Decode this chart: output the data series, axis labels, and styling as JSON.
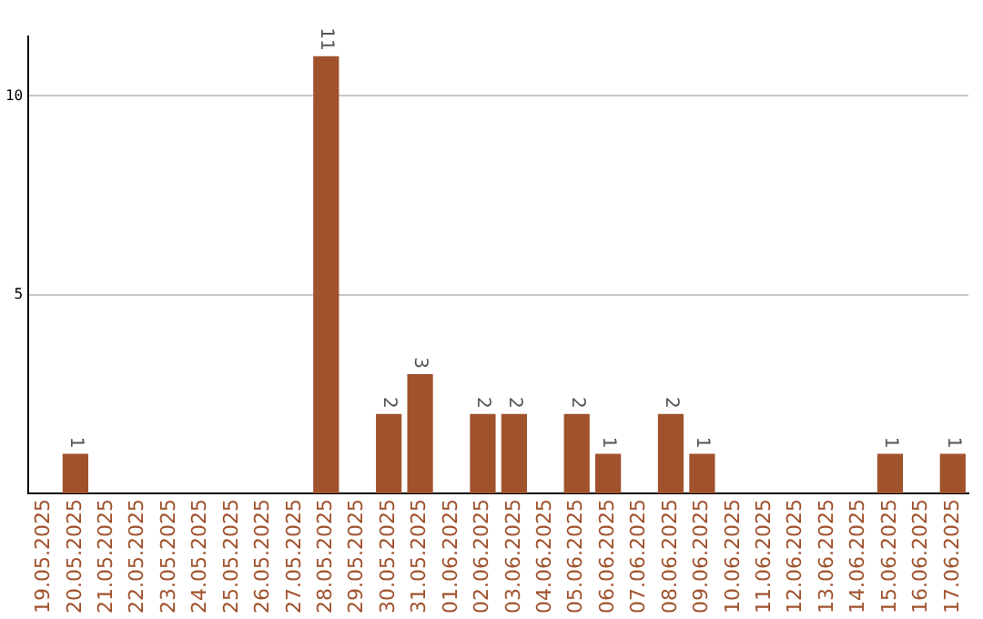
{
  "chart_data": {
    "type": "bar",
    "categories": [
      "19.05.2025",
      "20.05.2025",
      "21.05.2025",
      "22.05.2025",
      "23.05.2025",
      "24.05.2025",
      "25.05.2025",
      "26.05.2025",
      "27.05.2025",
      "28.05.2025",
      "29.05.2025",
      "30.05.2025",
      "31.05.2025",
      "01.06.2025",
      "02.06.2025",
      "03.06.2025",
      "04.06.2025",
      "05.06.2025",
      "06.06.2025",
      "07.06.2025",
      "08.06.2025",
      "09.06.2025",
      "10.06.2025",
      "11.06.2025",
      "12.06.2025",
      "13.06.2025",
      "14.06.2025",
      "15.06.2025",
      "16.06.2025",
      "17.06.2025"
    ],
    "values": [
      0,
      1,
      0,
      0,
      0,
      0,
      0,
      0,
      0,
      11,
      0,
      2,
      3,
      0,
      2,
      2,
      0,
      2,
      1,
      0,
      2,
      1,
      0,
      0,
      0,
      0,
      0,
      1,
      0,
      1
    ],
    "value_labels": [
      null,
      "1",
      null,
      null,
      null,
      null,
      null,
      null,
      null,
      "11",
      null,
      "2",
      "3",
      null,
      "2",
      "2",
      null,
      "2",
      "1",
      null,
      "2",
      "1",
      null,
      null,
      null,
      null,
      null,
      "1",
      null,
      "1"
    ],
    "color": "#a0522d",
    "ylim": [
      0,
      11.5
    ],
    "yticks": [
      5,
      10
    ],
    "grid": "y",
    "legend": false
  }
}
